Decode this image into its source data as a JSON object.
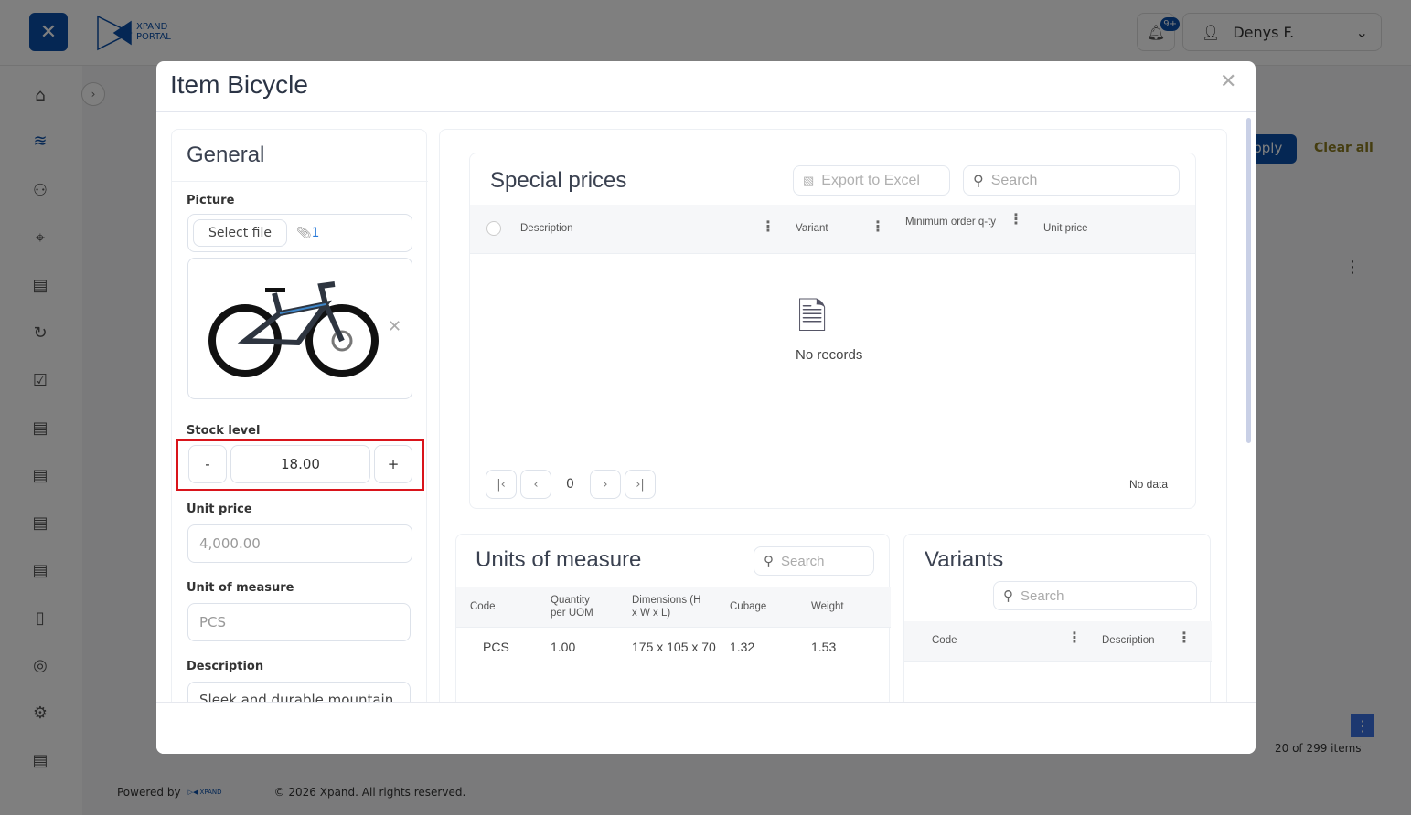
{
  "header": {
    "logo_text": "XPAND PORTAL",
    "notification_badge": "9+",
    "user_name": "Denys F."
  },
  "background": {
    "apply_label": "Apply",
    "clear_all_label": "Clear all",
    "items_count": "20 of 299 items",
    "footer_powered": "Powered by",
    "footer_copyright": "© 2026 Xpand. All rights reserved."
  },
  "modal": {
    "title": "Item Bicycle",
    "general": {
      "title": "General",
      "picture_label": "Picture",
      "select_file_label": "Select file",
      "attachment_count": "1",
      "stock_label": "Stock level",
      "stock_value": "18.00",
      "minus_label": "-",
      "plus_label": "+",
      "unit_price_label": "Unit price",
      "unit_price_value": "4,000.00",
      "uom_label": "Unit of measure",
      "uom_value": "PCS",
      "description_label": "Description",
      "description_value": "Sleek and durable mountain"
    },
    "special_prices": {
      "title": "Special prices",
      "export_label": "Export to Excel",
      "search_placeholder": "Search",
      "columns": [
        "Description",
        "Variant",
        "Minimum order q-ty",
        "Unit price"
      ],
      "empty_text": "No records",
      "page_number": "0",
      "pager_status": "No data"
    },
    "uom": {
      "title": "Units of measure",
      "search_placeholder": "Search",
      "columns": [
        "Code",
        "Quantity per UOM",
        "Dimensions (H x W x L)",
        "Cubage",
        "Weight"
      ],
      "rows": [
        [
          "PCS",
          "1.00",
          "175 x 105 x 70",
          "1.32",
          "1.53"
        ]
      ]
    },
    "variants": {
      "title": "Variants",
      "search_placeholder": "Search",
      "columns": [
        "Code",
        "Description"
      ]
    }
  },
  "colors": {
    "brand": "#0a4fa8",
    "highlight": "#d9141b"
  }
}
